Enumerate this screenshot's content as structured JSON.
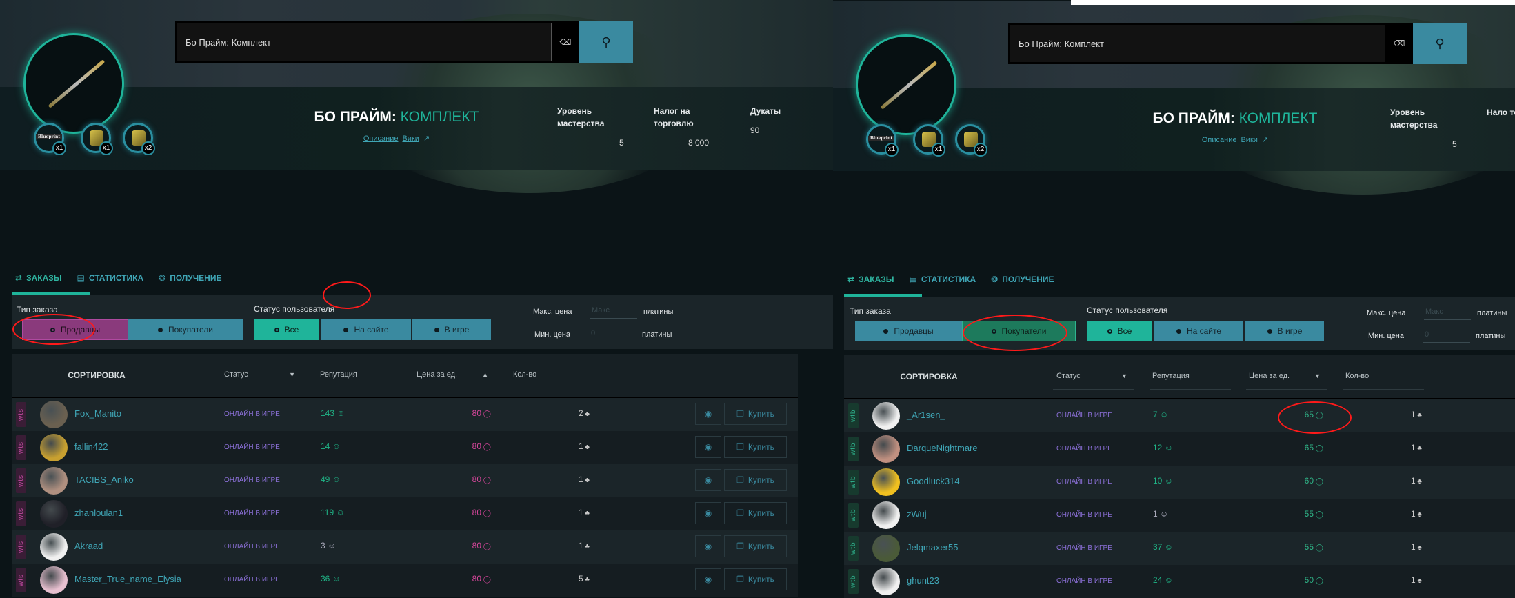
{
  "colors": {
    "accent": "#1fb49a",
    "button": "#3a8aa0",
    "seller": "#8a3a7c",
    "buyer_selected": "#1d7a5c",
    "status": "#8a6fd6",
    "reputation": "#1fb486",
    "annotation": "#ff1a1a"
  },
  "panels": [
    {
      "search": {
        "value": "Бо Прайм: Комплект",
        "clear_icon": "backspace-icon",
        "search_icon": "search-icon"
      },
      "item": {
        "title_main": "БО ПРАЙМ:",
        "title_accent": "КОМПЛЕКТ",
        "link_description": "Описание",
        "link_wiki": "Вики",
        "parts": [
          {
            "count": "x1",
            "label": "Blueprint"
          },
          {
            "count": "x1"
          },
          {
            "count": "x2"
          }
        ]
      },
      "stats": [
        {
          "label": "Уровень мастерства",
          "value": "5"
        },
        {
          "label": "Налог на торговлю",
          "value": "8 000"
        },
        {
          "label": "Дукаты",
          "value": "90"
        }
      ],
      "tabs": [
        {
          "label": "ЗАКАЗЫ",
          "icon": "exchange-icon",
          "active": true
        },
        {
          "label": "СТАТИСТИКА",
          "icon": "chart-icon"
        },
        {
          "label": "ПОЛУЧЕНИЕ",
          "icon": "relic-icon"
        }
      ],
      "filters": {
        "order_type_label": "Тип заказа",
        "sellers": "Продавцы",
        "buyers": "Покупатели",
        "selected_type": "sellers",
        "user_status_label": "Статус пользователя",
        "status_all": "Все",
        "status_site": "На сайте",
        "status_game": "В игре",
        "max_price_label": "Макс. цена",
        "max_price_placeholder": "Макс",
        "min_price_label": "Мин. цена",
        "min_price_placeholder": "0",
        "platinum": "платины"
      },
      "table": {
        "sort_label": "СОРТИРОВКА",
        "col_status": "Статус",
        "col_status_sort": "desc",
        "col_rep": "Репутация",
        "col_price": "Цена за ед.",
        "col_price_sort": "asc",
        "col_qty": "Кол-во",
        "buy_label": "Купить"
      },
      "rows": [
        {
          "type": "wts",
          "name": "Fox_Manito",
          "status": "ОНЛАЙН В ИГРЕ",
          "rep": "143",
          "price": "80",
          "qty": "2",
          "avatar": "#6a6050"
        },
        {
          "type": "wts",
          "name": "fallin422",
          "status": "ОНЛАЙН В ИГРЕ",
          "rep": "14",
          "price": "80",
          "qty": "1",
          "avatar": "#c8a030"
        },
        {
          "type": "wts",
          "name": "TACIBS_Aniko",
          "status": "ОНЛАЙН В ИГРЕ",
          "rep": "49",
          "price": "80",
          "qty": "1",
          "avatar": "#b09080"
        },
        {
          "type": "wts",
          "name": "zhanloulan1",
          "status": "ОНЛАЙН В ИГРЕ",
          "rep": "119",
          "price": "80",
          "qty": "1",
          "avatar": "#202028"
        },
        {
          "type": "wts",
          "name": "Akraad",
          "status": "ОНЛАЙН В ИГРЕ",
          "rep": "3",
          "price": "80",
          "qty": "1",
          "avatar": "#f0f0f0"
        },
        {
          "type": "wts",
          "name": "Master_True_name_Elysia",
          "status": "ОНЛАЙН В ИГРЕ",
          "rep": "36",
          "price": "80",
          "qty": "5",
          "avatar": "#e8c0d0"
        }
      ]
    },
    {
      "search": {
        "value": "Бо Прайм: Комплект",
        "clear_icon": "backspace-icon",
        "search_icon": "search-icon"
      },
      "item": {
        "title_main": "БО ПРАЙМ:",
        "title_accent": "КОМПЛЕКТ",
        "link_description": "Описание",
        "link_wiki": "Вики",
        "parts": [
          {
            "count": "x1",
            "label": "Blueprint"
          },
          {
            "count": "x1"
          },
          {
            "count": "x2"
          }
        ]
      },
      "stats": [
        {
          "label": "Уровень мастерства",
          "value": "5"
        },
        {
          "label": "Нало торго",
          "value": ""
        }
      ],
      "tabs": [
        {
          "label": "ЗАКАЗЫ",
          "icon": "exchange-icon",
          "active": true
        },
        {
          "label": "СТАТИСТИКА",
          "icon": "chart-icon"
        },
        {
          "label": "ПОЛУЧЕНИЕ",
          "icon": "relic-icon"
        }
      ],
      "filters": {
        "order_type_label": "Тип заказа",
        "sellers": "Продавцы",
        "buyers": "Покупатели",
        "selected_type": "buyers",
        "user_status_label": "Статус пользователя",
        "status_all": "Все",
        "status_site": "На сайте",
        "status_game": "В игре",
        "max_price_label": "Макс. цена",
        "max_price_placeholder": "Макс",
        "min_price_label": "Мин. цена",
        "min_price_placeholder": "0",
        "platinum": "платины"
      },
      "table": {
        "sort_label": "СОРТИРОВКА",
        "col_status": "Статус",
        "col_status_sort": "desc",
        "col_rep": "Репутация",
        "col_price": "Цена за ед.",
        "col_price_sort": "desc",
        "col_qty": "Кол-во",
        "buy_label": ""
      },
      "rows": [
        {
          "type": "wtb",
          "name": "_Ar1sen_",
          "status": "ОНЛАЙН В ИГРЕ",
          "rep": "7",
          "price": "65",
          "qty": "1",
          "avatar": "#f0f0f0"
        },
        {
          "type": "wtb",
          "name": "DarqueNightmare",
          "status": "ОНЛАЙН В ИГРЕ",
          "rep": "12",
          "price": "65",
          "qty": "1",
          "avatar": "#c09080"
        },
        {
          "type": "wtb",
          "name": "Goodluck314",
          "status": "ОНЛАЙН В ИГРЕ",
          "rep": "10",
          "price": "60",
          "qty": "1",
          "avatar": "#f0c020"
        },
        {
          "type": "wtb",
          "name": "zWuj",
          "status": "ОНЛАЙН В ИГРЕ",
          "rep": "1",
          "price": "55",
          "qty": "1",
          "avatar": "#f0f0f0"
        },
        {
          "type": "wtb",
          "name": "Jelqmaxer55",
          "status": "ОНЛАЙН В ИГРЕ",
          "rep": "37",
          "price": "55",
          "qty": "1",
          "avatar": "#4a5a38"
        },
        {
          "type": "wtb",
          "name": "ghunt23",
          "status": "ОНЛАЙН В ИГРЕ",
          "rep": "24",
          "price": "50",
          "qty": "1",
          "avatar": "#f0f0f0"
        }
      ]
    }
  ]
}
